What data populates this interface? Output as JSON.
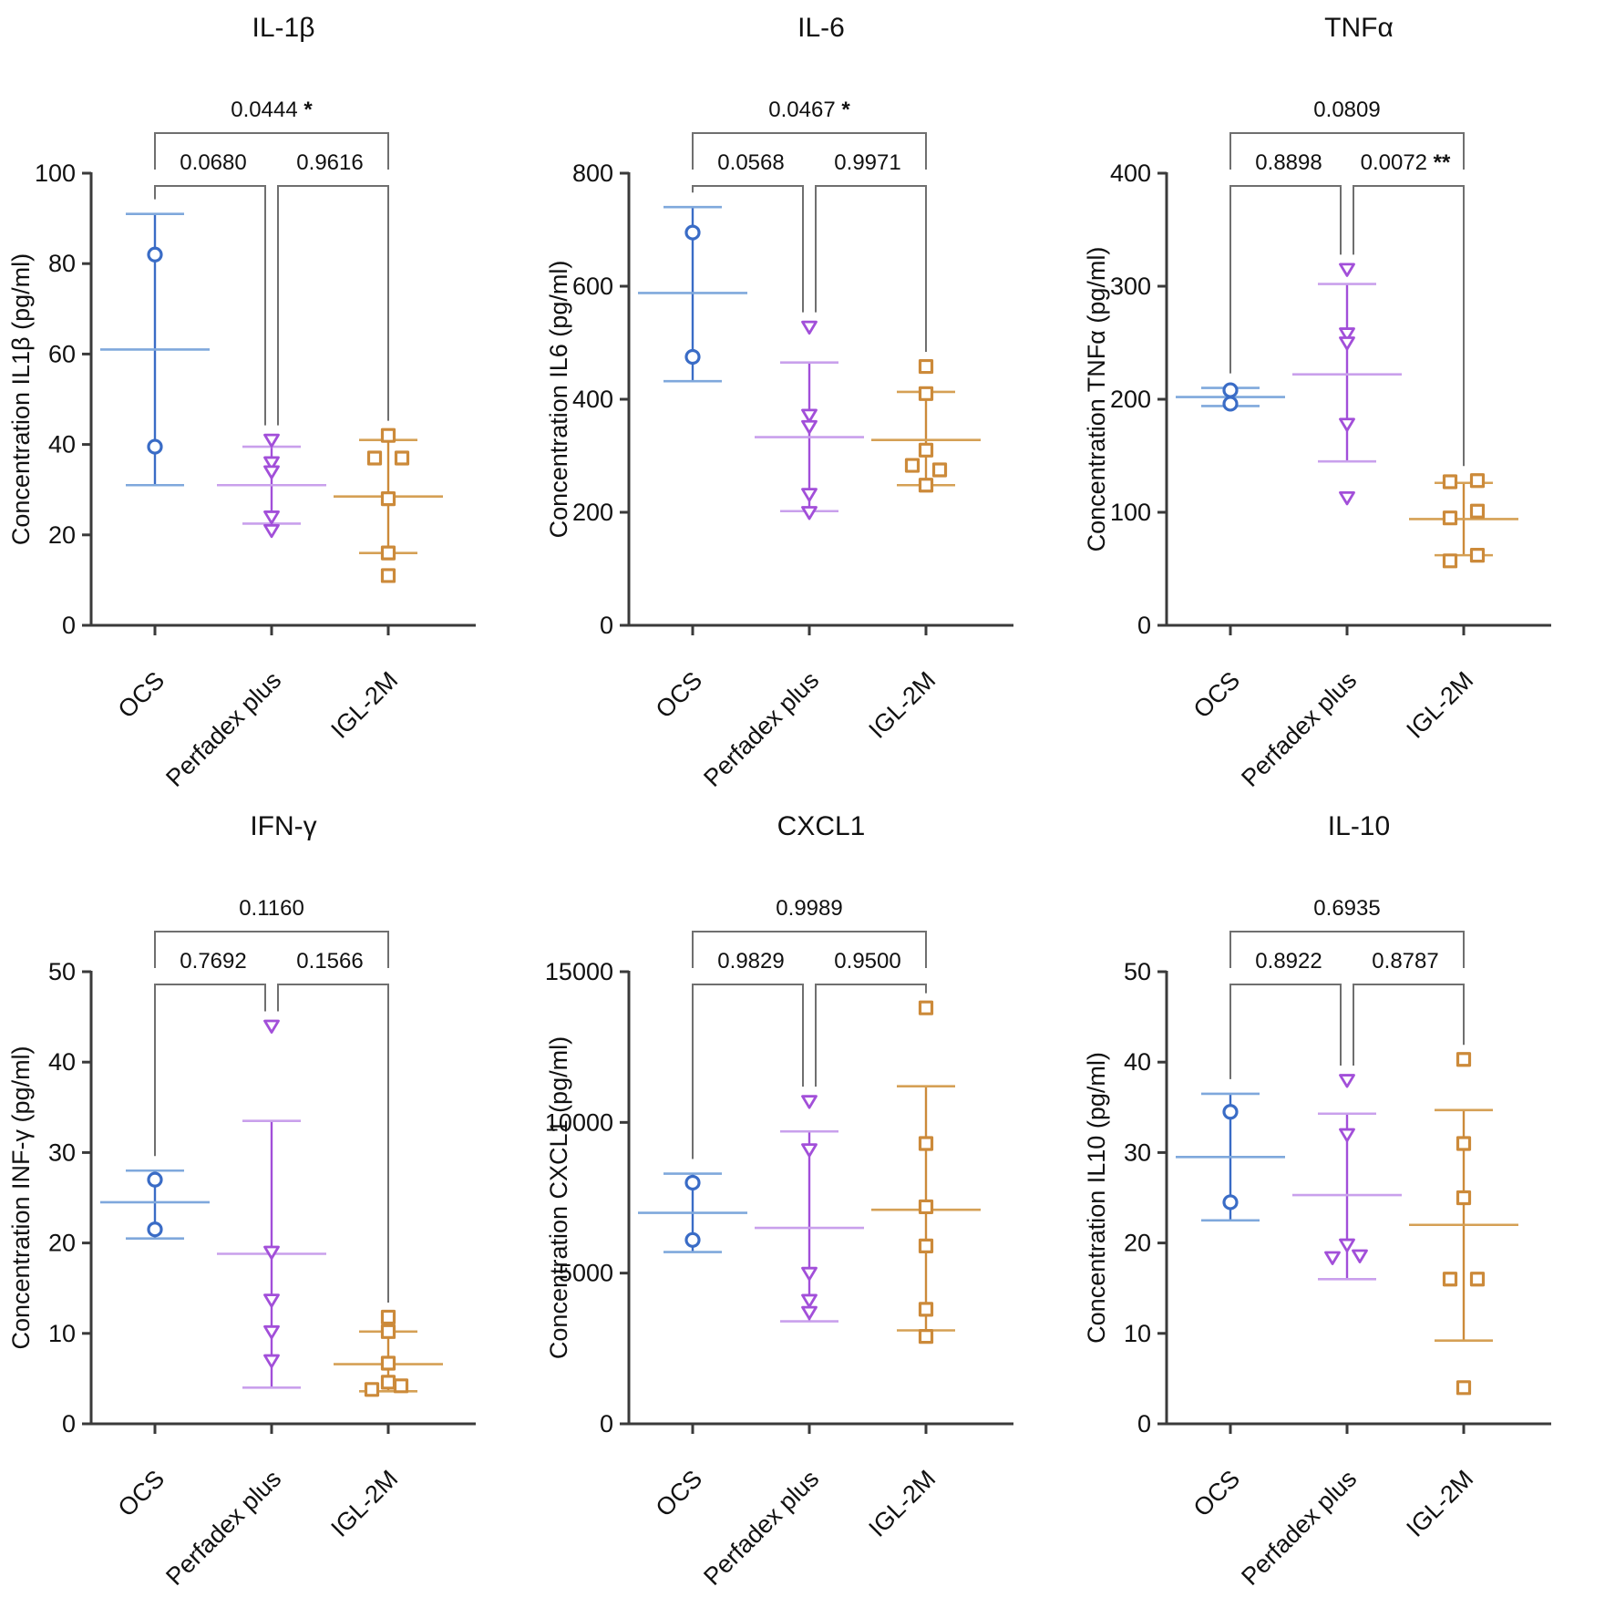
{
  "figure": {
    "background": "#ffffff",
    "axis_color": "#3a3a3a",
    "bracket_color": "#6f6f6f",
    "text_color": "#111111",
    "categories": [
      "OCS",
      "Perfadex plus",
      "IGL-2M"
    ],
    "group_styles": [
      {
        "name": "OCS",
        "marker": "circle",
        "marker_color": "#3a6cc6",
        "line_color": "#7fa8dc"
      },
      {
        "name": "Perfadex plus",
        "marker": "triangle-down",
        "marker_color": "#a24fd9",
        "line_color": "#c9a0ec"
      },
      {
        "name": "IGL-2M",
        "marker": "square",
        "marker_color": "#cc8a3a",
        "line_color": "#d5a055"
      }
    ]
  },
  "chart_data": {
    "type": "scatter",
    "description": "Mean ± SD scatter plots of cytokine concentrations for three preservation groups with pairwise p-values",
    "panels": [
      {
        "title": "IL-1β",
        "ylabel": "Concentration IL1β (pg/ml)",
        "ylim": [
          0,
          100
        ],
        "yticks": [
          0,
          20,
          40,
          60,
          80,
          100
        ],
        "comparisons": [
          {
            "pair": [
              0,
              2
            ],
            "p": "0.0444",
            "stars": "*"
          },
          {
            "pair": [
              0,
              1
            ],
            "p": "0.0680",
            "stars": ""
          },
          {
            "pair": [
              1,
              2
            ],
            "p": "0.9616",
            "stars": ""
          }
        ],
        "groups": [
          {
            "name": "OCS",
            "values": [
              82,
              39.5
            ],
            "offsets": [
              0,
              0
            ],
            "mean": 61,
            "err": [
              31,
              91
            ]
          },
          {
            "name": "Perfadex plus",
            "values": [
              41,
              36,
              34,
              24,
              21
            ],
            "offsets": [
              0,
              0,
              0,
              0,
              0
            ],
            "mean": 31,
            "err": [
              22.5,
              39.5
            ]
          },
          {
            "name": "IGL-2M",
            "values": [
              42,
              37,
              37,
              28,
              16,
              11
            ],
            "offsets": [
              0,
              -15,
              15,
              0,
              0,
              0
            ],
            "mean": 28.5,
            "err": [
              16,
              41
            ]
          }
        ]
      },
      {
        "title": "IL-6",
        "ylabel": "Concentration IL6 (pg/ml)",
        "ylim": [
          0,
          800
        ],
        "yticks": [
          0,
          200,
          400,
          600,
          800
        ],
        "comparisons": [
          {
            "pair": [
              0,
              2
            ],
            "p": "0.0467",
            "stars": "*"
          },
          {
            "pair": [
              0,
              1
            ],
            "p": "0.0568",
            "stars": ""
          },
          {
            "pair": [
              1,
              2
            ],
            "p": "0.9971",
            "stars": ""
          }
        ],
        "groups": [
          {
            "name": "OCS",
            "values": [
              695,
              475
            ],
            "offsets": [
              0,
              0
            ],
            "mean": 588,
            "err": [
              432,
              740
            ]
          },
          {
            "name": "Perfadex plus",
            "values": [
              528,
              372,
              352,
              232,
              200
            ],
            "offsets": [
              0,
              0,
              0,
              0,
              0
            ],
            "mean": 333,
            "err": [
              202,
              465
            ]
          },
          {
            "name": "IGL-2M",
            "values": [
              458,
              410,
              310,
              283,
              275,
              248
            ],
            "offsets": [
              0,
              0,
              0,
              -15,
              15,
              0
            ],
            "mean": 328,
            "err": [
              248,
              413
            ]
          }
        ]
      },
      {
        "title": "TNFα",
        "ylabel": "Concentration TNFα (pg/ml)",
        "ylim": [
          0,
          400
        ],
        "yticks": [
          0,
          100,
          200,
          300,
          400
        ],
        "comparisons": [
          {
            "pair": [
              0,
              2
            ],
            "p": "0.0809",
            "stars": ""
          },
          {
            "pair": [
              0,
              1
            ],
            "p": "0.8898",
            "stars": ""
          },
          {
            "pair": [
              1,
              2
            ],
            "p": "0.0072",
            "stars": "**"
          }
        ],
        "groups": [
          {
            "name": "OCS",
            "values": [
              208,
              196
            ],
            "offsets": [
              0,
              0
            ],
            "mean": 202,
            "err": [
              194,
              210
            ]
          },
          {
            "name": "Perfadex plus",
            "values": [
              315,
              258,
              250,
              178,
              113
            ],
            "offsets": [
              0,
              0,
              0,
              0,
              0
            ],
            "mean": 222,
            "err": [
              145,
              302
            ]
          },
          {
            "name": "IGL-2M",
            "values": [
              127,
              128,
              95,
              101,
              57,
              62
            ],
            "offsets": [
              -15,
              15,
              -15,
              15,
              -15,
              15
            ],
            "mean": 94,
            "err": [
              62,
              126
            ]
          }
        ]
      },
      {
        "title": "IFN-γ",
        "ylabel": "Concentration INF-γ (pg/ml)",
        "ylim": [
          0,
          50
        ],
        "yticks": [
          0,
          10,
          20,
          30,
          40,
          50
        ],
        "comparisons": [
          {
            "pair": [
              0,
              2
            ],
            "p": "0.1160",
            "stars": ""
          },
          {
            "pair": [
              0,
              1
            ],
            "p": "0.7692",
            "stars": ""
          },
          {
            "pair": [
              1,
              2
            ],
            "p": "0.1566",
            "stars": ""
          }
        ],
        "groups": [
          {
            "name": "OCS",
            "values": [
              27,
              21.5
            ],
            "offsets": [
              0,
              0
            ],
            "mean": 24.5,
            "err": [
              20.5,
              28
            ]
          },
          {
            "name": "Perfadex plus",
            "values": [
              44,
              19,
              13.7,
              10.2,
              7
            ],
            "offsets": [
              0,
              0,
              0,
              0,
              0
            ],
            "mean": 18.8,
            "err": [
              4,
              33.5
            ]
          },
          {
            "name": "IGL-2M",
            "values": [
              11.8,
              10.2,
              6.7,
              4.6,
              3.8,
              4.2
            ],
            "offsets": [
              0,
              0,
              0,
              0,
              -18,
              14
            ],
            "mean": 6.6,
            "err": [
              3.6,
              10.2
            ]
          }
        ]
      },
      {
        "title": "CXCL1",
        "ylabel": "Concentration CXCL1 (pg/ml)",
        "ylim": [
          0,
          15000
        ],
        "yticks": [
          0,
          5000,
          10000,
          15000
        ],
        "comparisons": [
          {
            "pair": [
              0,
              2
            ],
            "p": "0.9989",
            "stars": ""
          },
          {
            "pair": [
              0,
              1
            ],
            "p": "0.9829",
            "stars": ""
          },
          {
            "pair": [
              1,
              2
            ],
            "p": "0.9500",
            "stars": ""
          }
        ],
        "groups": [
          {
            "name": "OCS",
            "values": [
              8000,
              6100
            ],
            "offsets": [
              0,
              0
            ],
            "mean": 7000,
            "err": [
              5700,
              8300
            ]
          },
          {
            "name": "Perfadex plus",
            "values": [
              10700,
              9100,
              5000,
              4100,
              3700
            ],
            "offsets": [
              0,
              0,
              0,
              0,
              0
            ],
            "mean": 6500,
            "err": [
              3400,
              9700
            ]
          },
          {
            "name": "IGL-2M",
            "values": [
              13800,
              9300,
              7200,
              5900,
              3800,
              2900
            ],
            "offsets": [
              0,
              0,
              0,
              0,
              0,
              0
            ],
            "mean": 7100,
            "err": [
              3100,
              11200
            ]
          }
        ]
      },
      {
        "title": "IL-10",
        "ylabel": "Concentration IL10 (pg/ml)",
        "ylim": [
          0,
          50
        ],
        "yticks": [
          0,
          10,
          20,
          30,
          40,
          50
        ],
        "comparisons": [
          {
            "pair": [
              0,
              2
            ],
            "p": "0.6935",
            "stars": ""
          },
          {
            "pair": [
              0,
              1
            ],
            "p": "0.8922",
            "stars": ""
          },
          {
            "pair": [
              1,
              2
            ],
            "p": "0.8787",
            "stars": ""
          }
        ],
        "groups": [
          {
            "name": "OCS",
            "values": [
              34.5,
              24.5
            ],
            "offsets": [
              0,
              0
            ],
            "mean": 29.5,
            "err": [
              22.5,
              36.5
            ]
          },
          {
            "name": "Perfadex plus",
            "values": [
              38,
              32,
              19.8,
              18.4,
              18.6
            ],
            "offsets": [
              0,
              0,
              0,
              -16,
              14
            ],
            "mean": 25.3,
            "err": [
              16,
              34.3
            ]
          },
          {
            "name": "IGL-2M",
            "values": [
              40.3,
              31,
              25,
              16,
              16,
              4
            ],
            "offsets": [
              0,
              0,
              0,
              -15,
              15,
              0
            ],
            "mean": 22,
            "err": [
              9.2,
              34.7
            ]
          }
        ]
      }
    ]
  }
}
